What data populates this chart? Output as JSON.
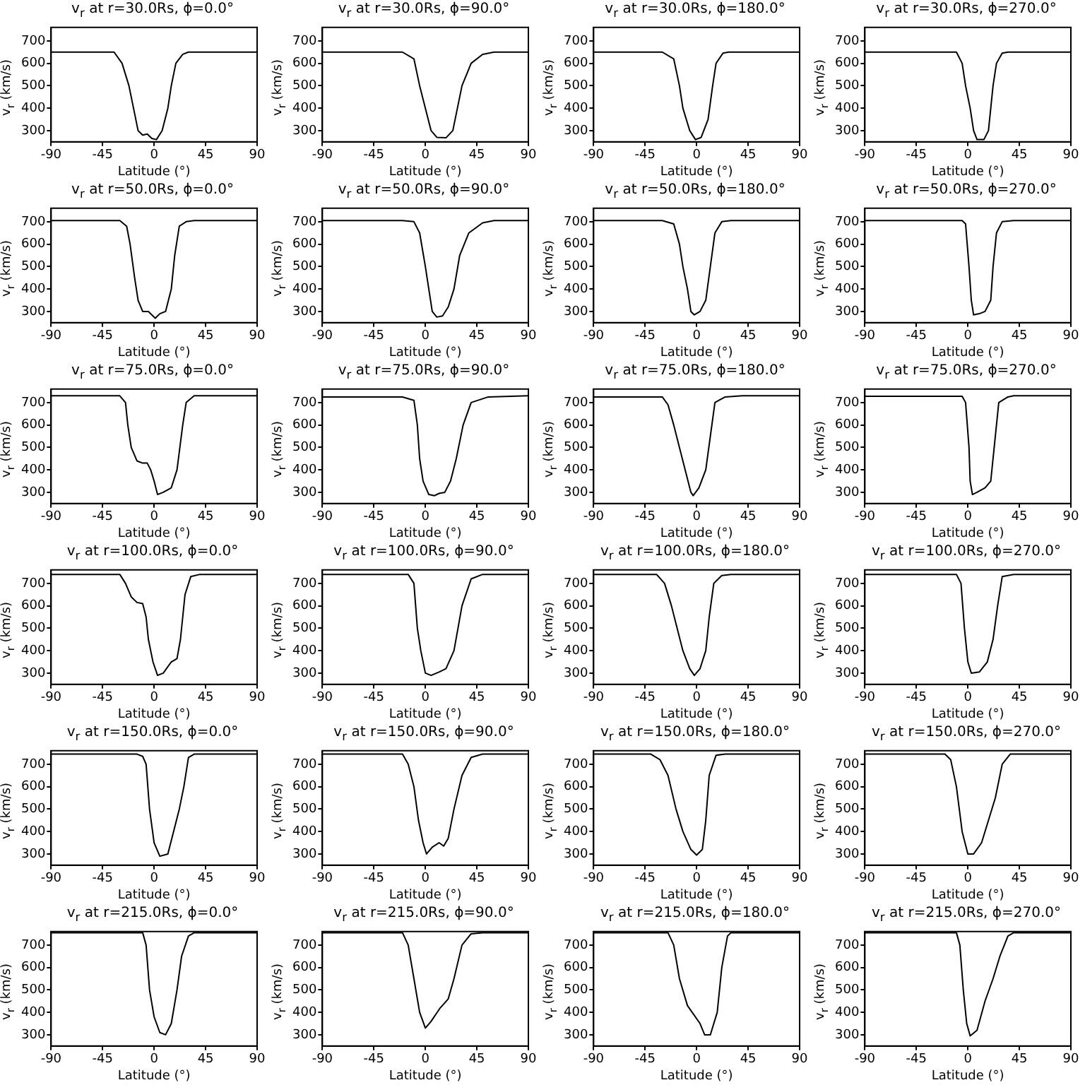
{
  "chart_data": [
    {
      "type": "line",
      "title": "v$_{r}$ at r=30.0Rs, ϕ=0.0°",
      "xlabel": "Latitude (°)",
      "ylabel": "v$_{r}$ (km/s)",
      "color": "#000000",
      "xlim": [
        -90,
        90
      ],
      "ylim": [
        250,
        760
      ],
      "xticks": [
        -90,
        -45,
        0,
        45,
        90
      ],
      "yticks": [
        300,
        400,
        500,
        600,
        700
      ],
      "x": [
        -90,
        -35,
        -28,
        -22,
        -18,
        -14,
        -10,
        -6,
        -2,
        2,
        7,
        12,
        15,
        19,
        25,
        30,
        90
      ],
      "values": [
        650,
        650,
        600,
        500,
        400,
        300,
        280,
        285,
        265,
        260,
        300,
        400,
        500,
        600,
        640,
        650,
        650
      ]
    },
    {
      "type": "line",
      "title": "v$_{r}$ at r=30.0Rs, ϕ=90.0°",
      "xlabel": "Latitude (°)",
      "ylabel": "v$_{r}$ (km/s)",
      "color": "#000000",
      "xlim": [
        -90,
        90
      ],
      "ylim": [
        250,
        760
      ],
      "xticks": [
        -90,
        -45,
        0,
        45,
        90
      ],
      "yticks": [
        300,
        400,
        500,
        600,
        700
      ],
      "x": [
        -90,
        -20,
        -10,
        -5,
        0,
        5,
        10,
        18,
        24,
        28,
        32,
        40,
        50,
        60,
        90
      ],
      "values": [
        650,
        650,
        620,
        500,
        400,
        300,
        270,
        268,
        300,
        400,
        500,
        600,
        640,
        650,
        650
      ]
    },
    {
      "type": "line",
      "title": "v$_{r}$ at r=30.0Rs, ϕ=180.0°",
      "xlabel": "Latitude (°)",
      "ylabel": "v$_{r}$ (km/s)",
      "color": "#000000",
      "xlim": [
        -90,
        90
      ],
      "ylim": [
        250,
        760
      ],
      "xticks": [
        -90,
        -45,
        0,
        45,
        90
      ],
      "yticks": [
        300,
        400,
        500,
        600,
        700
      ],
      "x": [
        -90,
        -30,
        -20,
        -15,
        -12,
        -6,
        -1,
        4,
        10,
        14,
        17,
        23,
        28,
        90
      ],
      "values": [
        650,
        650,
        620,
        500,
        400,
        300,
        260,
        270,
        350,
        500,
        600,
        645,
        650,
        650
      ]
    },
    {
      "type": "line",
      "title": "v$_{r}$ at r=30.0Rs, ϕ=270.0°",
      "xlabel": "Latitude (°)",
      "ylabel": "v$_{r}$ (km/s)",
      "color": "#000000",
      "xlim": [
        -90,
        90
      ],
      "ylim": [
        250,
        760
      ],
      "xticks": [
        -90,
        -45,
        0,
        45,
        90
      ],
      "yticks": [
        300,
        400,
        500,
        600,
        700
      ],
      "x": [
        -90,
        -10,
        -5,
        -2,
        2,
        5,
        8,
        14,
        18,
        20,
        22,
        25,
        30,
        35,
        90
      ],
      "values": [
        650,
        650,
        600,
        500,
        400,
        300,
        260,
        260,
        300,
        400,
        500,
        600,
        645,
        650,
        650
      ]
    },
    {
      "type": "line",
      "title": "v$_{r}$ at r=50.0Rs, ϕ=0.0°",
      "xlabel": "Latitude (°)",
      "ylabel": "v$_{r}$ (km/s)",
      "color": "#000000",
      "xlim": [
        -90,
        90
      ],
      "ylim": [
        250,
        760
      ],
      "xticks": [
        -90,
        -45,
        0,
        45,
        90
      ],
      "yticks": [
        300,
        400,
        500,
        600,
        700
      ],
      "x": [
        -90,
        -30,
        -24,
        -21,
        -17,
        -14,
        -10,
        -5,
        -2,
        1,
        5,
        10,
        15,
        18,
        22,
        28,
        35,
        90
      ],
      "values": [
        705,
        705,
        680,
        600,
        450,
        350,
        300,
        300,
        285,
        270,
        290,
        300,
        400,
        550,
        680,
        700,
        705,
        705
      ]
    },
    {
      "type": "line",
      "title": "v$_{r}$ at r=50.0Rs, ϕ=90.0°",
      "xlabel": "Latitude (°)",
      "ylabel": "v$_{r}$ (km/s)",
      "color": "#000000",
      "xlim": [
        -90,
        90
      ],
      "ylim": [
        250,
        760
      ],
      "xticks": [
        -90,
        -45,
        0,
        45,
        90
      ],
      "yticks": [
        300,
        400,
        500,
        600,
        700
      ],
      "x": [
        -90,
        -20,
        -10,
        -5,
        0,
        3,
        6,
        10,
        15,
        20,
        25,
        30,
        38,
        50,
        60,
        90
      ],
      "values": [
        705,
        705,
        700,
        650,
        500,
        400,
        300,
        275,
        280,
        320,
        400,
        550,
        650,
        695,
        705,
        705
      ]
    },
    {
      "type": "line",
      "title": "v$_{r}$ at r=50.0Rs, ϕ=180.0°",
      "xlabel": "Latitude (°)",
      "ylabel": "v$_{r}$ (km/s)",
      "color": "#000000",
      "xlim": [
        -90,
        90
      ],
      "ylim": [
        250,
        760
      ],
      "xticks": [
        -90,
        -45,
        0,
        45,
        90
      ],
      "yticks": [
        300,
        400,
        500,
        600,
        700
      ],
      "x": [
        -90,
        -30,
        -20,
        -15,
        -12,
        -8,
        -5,
        -2,
        3,
        8,
        12,
        16,
        22,
        30,
        90
      ],
      "values": [
        705,
        705,
        690,
        600,
        500,
        400,
        300,
        285,
        300,
        350,
        500,
        650,
        700,
        705,
        705
      ]
    },
    {
      "type": "line",
      "title": "v$_{r}$ at r=50.0Rs, ϕ=270.0°",
      "xlabel": "Latitude (°)",
      "ylabel": "v$_{r}$ (km/s)",
      "color": "#000000",
      "xlim": [
        -90,
        90
      ],
      "ylim": [
        250,
        760
      ],
      "xticks": [
        -90,
        -45,
        0,
        45,
        90
      ],
      "yticks": [
        300,
        400,
        500,
        600,
        700
      ],
      "x": [
        -90,
        -5,
        -2,
        1,
        3,
        5,
        10,
        15,
        20,
        22,
        25,
        30,
        40,
        90
      ],
      "values": [
        705,
        705,
        690,
        500,
        350,
        285,
        290,
        300,
        350,
        500,
        650,
        700,
        705,
        705
      ]
    },
    {
      "type": "line",
      "title": "v$_{r}$ at r=75.0Rs, ϕ=0.0°",
      "xlabel": "Latitude (°)",
      "ylabel": "v$_{r}$ (km/s)",
      "color": "#000000",
      "xlim": [
        -90,
        90
      ],
      "ylim": [
        250,
        760
      ],
      "xticks": [
        -90,
        -45,
        0,
        45,
        90
      ],
      "yticks": [
        300,
        400,
        500,
        600,
        700
      ],
      "x": [
        -90,
        -30,
        -25,
        -23,
        -20,
        -15,
        -10,
        -6,
        -3,
        0,
        3,
        8,
        15,
        20,
        25,
        28,
        35,
        90
      ],
      "values": [
        730,
        730,
        700,
        600,
        500,
        440,
        430,
        430,
        400,
        350,
        290,
        300,
        320,
        400,
        600,
        700,
        730,
        730
      ]
    },
    {
      "type": "line",
      "title": "v$_{r}$ at r=75.0Rs, ϕ=90.0°",
      "xlabel": "Latitude (°)",
      "ylabel": "v$_{r}$ (km/s)",
      "color": "#000000",
      "xlim": [
        -90,
        90
      ],
      "ylim": [
        250,
        760
      ],
      "xticks": [
        -90,
        -45,
        0,
        45,
        90
      ],
      "yticks": [
        300,
        400,
        500,
        600,
        700
      ],
      "x": [
        -90,
        -20,
        -10,
        -7,
        -5,
        -2,
        3,
        8,
        12,
        17,
        22,
        27,
        33,
        40,
        55,
        90
      ],
      "values": [
        725,
        725,
        710,
        600,
        450,
        350,
        290,
        285,
        295,
        300,
        350,
        450,
        600,
        700,
        725,
        730
      ]
    },
    {
      "type": "line",
      "title": "v$_{r}$ at r=75.0Rs, ϕ=180.0°",
      "xlabel": "Latitude (°)",
      "ylabel": "v$_{r}$ (km/s)",
      "color": "#000000",
      "xlim": [
        -90,
        90
      ],
      "ylim": [
        250,
        760
      ],
      "xticks": [
        -90,
        -45,
        0,
        45,
        90
      ],
      "yticks": [
        300,
        400,
        500,
        600,
        700
      ],
      "x": [
        -90,
        -30,
        -25,
        -20,
        -15,
        -10,
        -5,
        -3,
        2,
        8,
        12,
        16,
        25,
        40,
        90
      ],
      "values": [
        725,
        725,
        690,
        600,
        500,
        400,
        300,
        285,
        320,
        400,
        550,
        700,
        725,
        730,
        730
      ]
    },
    {
      "type": "line",
      "title": "v$_{r}$ at r=75.0Rs, ϕ=270.0°",
      "xlabel": "Latitude (°)",
      "ylabel": "v$_{r}$ (km/s)",
      "color": "#000000",
      "xlim": [
        -90,
        90
      ],
      "ylim": [
        250,
        760
      ],
      "xticks": [
        -90,
        -45,
        0,
        45,
        90
      ],
      "yticks": [
        300,
        400,
        500,
        600,
        700
      ],
      "x": [
        -90,
        -5,
        -2,
        1,
        2,
        4,
        8,
        15,
        20,
        23,
        27,
        35,
        40,
        90
      ],
      "values": [
        728,
        728,
        700,
        500,
        350,
        290,
        300,
        320,
        350,
        500,
        700,
        725,
        730,
        730
      ]
    },
    {
      "type": "line",
      "title": "v$_{r}$ at r=100.0Rs, ϕ=0.0°",
      "xlabel": "Latitude (°)",
      "ylabel": "v$_{r}$ (km/s)",
      "color": "#000000",
      "xlim": [
        -90,
        90
      ],
      "ylim": [
        250,
        760
      ],
      "xticks": [
        -90,
        -45,
        0,
        45,
        90
      ],
      "yticks": [
        300,
        400,
        500,
        600,
        700
      ],
      "x": [
        -90,
        -30,
        -25,
        -20,
        -15,
        -10,
        -7,
        -5,
        -1,
        3,
        8,
        15,
        20,
        23,
        27,
        32,
        40,
        90
      ],
      "values": [
        740,
        740,
        700,
        640,
        615,
        610,
        550,
        450,
        350,
        290,
        300,
        350,
        365,
        450,
        650,
        730,
        740,
        740
      ]
    },
    {
      "type": "line",
      "title": "v$_{r}$ at r=100.0Rs, ϕ=90.0°",
      "xlabel": "Latitude (°)",
      "ylabel": "v$_{r}$ (km/s)",
      "color": "#000000",
      "xlim": [
        -90,
        90
      ],
      "ylim": [
        250,
        760
      ],
      "xticks": [
        -90,
        -45,
        0,
        45,
        90
      ],
      "yticks": [
        300,
        400,
        500,
        600,
        700
      ],
      "x": [
        -90,
        -15,
        -10,
        -7,
        -4,
        0,
        5,
        12,
        18,
        25,
        32,
        40,
        50,
        90
      ],
      "values": [
        740,
        740,
        700,
        500,
        400,
        300,
        290,
        305,
        320,
        400,
        600,
        720,
        740,
        740
      ]
    },
    {
      "type": "line",
      "title": "v$_{r}$ at r=100.0Rs, ϕ=180.0°",
      "xlabel": "Latitude (°)",
      "ylabel": "v$_{r}$ (km/s)",
      "color": "#000000",
      "xlim": [
        -90,
        90
      ],
      "ylim": [
        250,
        760
      ],
      "xticks": [
        -90,
        -45,
        0,
        45,
        90
      ],
      "yticks": [
        300,
        400,
        500,
        600,
        700
      ],
      "x": [
        -90,
        -35,
        -28,
        -22,
        -17,
        -12,
        -6,
        -2,
        3,
        8,
        11,
        15,
        22,
        30,
        90
      ],
      "values": [
        740,
        740,
        700,
        600,
        500,
        400,
        320,
        290,
        320,
        400,
        550,
        700,
        735,
        740,
        740
      ]
    },
    {
      "type": "line",
      "title": "v$_{r}$ at r=100.0Rs, ϕ=270.0°",
      "xlabel": "Latitude (°)",
      "ylabel": "v$_{r}$ (km/s)",
      "color": "#000000",
      "xlim": [
        -90,
        90
      ],
      "ylim": [
        250,
        760
      ],
      "xticks": [
        -90,
        -45,
        0,
        45,
        90
      ],
      "yticks": [
        300,
        400,
        500,
        600,
        700
      ],
      "x": [
        -90,
        -10,
        -6,
        -3,
        0,
        3,
        10,
        17,
        22,
        26,
        30,
        40,
        90
      ],
      "values": [
        740,
        740,
        700,
        500,
        350,
        300,
        305,
        350,
        450,
        600,
        730,
        740,
        740
      ]
    },
    {
      "type": "line",
      "title": "v$_{r}$ at r=150.0Rs, ϕ=0.0°",
      "xlabel": "Latitude (°)",
      "ylabel": "v$_{r}$ (km/s)",
      "color": "#000000",
      "xlim": [
        -90,
        90
      ],
      "ylim": [
        250,
        760
      ],
      "xticks": [
        -90,
        -45,
        0,
        45,
        90
      ],
      "yticks": [
        300,
        400,
        500,
        600,
        700
      ],
      "x": [
        -90,
        -15,
        -10,
        -7,
        -4,
        0,
        5,
        12,
        17,
        22,
        26,
        30,
        35,
        90
      ],
      "values": [
        745,
        745,
        735,
        700,
        500,
        350,
        290,
        300,
        400,
        500,
        600,
        730,
        745,
        745
      ]
    },
    {
      "type": "line",
      "title": "v$_{r}$ at r=150.0Rs, ϕ=90.0°",
      "xlabel": "Latitude (°)",
      "ylabel": "v$_{r}$ (km/s)",
      "color": "#000000",
      "xlim": [
        -90,
        90
      ],
      "ylim": [
        250,
        760
      ],
      "xticks": [
        -90,
        -45,
        0,
        45,
        90
      ],
      "yticks": [
        300,
        400,
        500,
        600,
        700
      ],
      "x": [
        -90,
        -20,
        -15,
        -10,
        -6,
        -2,
        1,
        6,
        12,
        16,
        20,
        25,
        32,
        40,
        50,
        90
      ],
      "values": [
        745,
        745,
        700,
        600,
        450,
        350,
        300,
        330,
        350,
        335,
        370,
        500,
        650,
        730,
        745,
        745
      ]
    },
    {
      "type": "line",
      "title": "v$_{r}$ at r=150.0Rs, ϕ=180.0°",
      "xlabel": "Latitude (°)",
      "ylabel": "v$_{r}$ (km/s)",
      "color": "#000000",
      "xlim": [
        -90,
        90
      ],
      "ylim": [
        250,
        760
      ],
      "xticks": [
        -90,
        -45,
        0,
        45,
        90
      ],
      "yticks": [
        300,
        400,
        500,
        600,
        700
      ],
      "x": [
        -90,
        -40,
        -32,
        -25,
        -18,
        -12,
        -5,
        0,
        5,
        8,
        11,
        17,
        25,
        90
      ],
      "values": [
        745,
        745,
        720,
        650,
        500,
        400,
        320,
        295,
        320,
        450,
        650,
        740,
        745,
        745
      ]
    },
    {
      "type": "line",
      "title": "v$_{r}$ at r=150.0Rs, ϕ=270.0°",
      "xlabel": "Latitude (°)",
      "ylabel": "v$_{r}$ (km/s)",
      "color": "#000000",
      "xlim": [
        -90,
        90
      ],
      "ylim": [
        250,
        760
      ],
      "xticks": [
        -90,
        -45,
        0,
        45,
        90
      ],
      "yticks": [
        300,
        400,
        500,
        600,
        700
      ],
      "x": [
        -90,
        -20,
        -15,
        -10,
        -5,
        0,
        5,
        12,
        18,
        24,
        30,
        37,
        90
      ],
      "values": [
        745,
        745,
        720,
        600,
        400,
        300,
        300,
        350,
        450,
        550,
        700,
        745,
        745
      ]
    },
    {
      "type": "line",
      "title": "v$_{r}$ at r=215.0Rs, ϕ=0.0°",
      "xlabel": "Latitude (°)",
      "ylabel": "v$_{r}$ (km/s)",
      "color": "#000000",
      "xlim": [
        -90,
        90
      ],
      "ylim": [
        250,
        760
      ],
      "xticks": [
        -90,
        -45,
        0,
        45,
        90
      ],
      "yticks": [
        300,
        400,
        500,
        600,
        700
      ],
      "x": [
        -90,
        -10,
        -7,
        -4,
        0,
        5,
        10,
        15,
        20,
        24,
        30,
        35,
        90
      ],
      "values": [
        755,
        755,
        700,
        500,
        380,
        310,
        300,
        350,
        500,
        650,
        740,
        755,
        755
      ]
    },
    {
      "type": "line",
      "title": "v$_{r}$ at r=215.0Rs, ϕ=90.0°",
      "xlabel": "Latitude (°)",
      "ylabel": "v$_{r}$ (km/s)",
      "color": "#000000",
      "xlim": [
        -90,
        90
      ],
      "ylim": [
        250,
        760
      ],
      "xticks": [
        -90,
        -45,
        0,
        45,
        90
      ],
      "yticks": [
        300,
        400,
        500,
        600,
        700
      ],
      "x": [
        -90,
        -20,
        -15,
        -10,
        -5,
        0,
        5,
        13,
        20,
        25,
        32,
        40,
        50,
        90
      ],
      "values": [
        755,
        755,
        700,
        550,
        400,
        330,
        360,
        420,
        460,
        550,
        700,
        750,
        755,
        755
      ]
    },
    {
      "type": "line",
      "title": "v$_{r}$ at r=215.0Rs, ϕ=180.0°",
      "xlabel": "Latitude (°)",
      "ylabel": "v$_{r}$ (km/s)",
      "color": "#000000",
      "xlim": [
        -90,
        90
      ],
      "ylim": [
        250,
        760
      ],
      "xticks": [
        -90,
        -45,
        0,
        45,
        90
      ],
      "yticks": [
        300,
        400,
        500,
        600,
        700
      ],
      "x": [
        -90,
        -25,
        -20,
        -15,
        -8,
        3,
        7,
        12,
        18,
        22,
        27,
        30,
        90
      ],
      "values": [
        755,
        755,
        700,
        550,
        430,
        350,
        300,
        300,
        400,
        600,
        740,
        755,
        755
      ]
    },
    {
      "type": "line",
      "title": "v$_{r}$ at r=215.0Rs, ϕ=270.0°",
      "xlabel": "Latitude (°)",
      "ylabel": "v$_{r}$ (km/s)",
      "color": "#000000",
      "xlim": [
        -90,
        90
      ],
      "ylim": [
        250,
        760
      ],
      "xticks": [
        -90,
        -45,
        0,
        45,
        90
      ],
      "yticks": [
        300,
        400,
        500,
        600,
        700
      ],
      "x": [
        -90,
        -10,
        -7,
        -4,
        -1,
        2,
        8,
        15,
        22,
        28,
        35,
        40,
        90
      ],
      "values": [
        755,
        755,
        700,
        500,
        350,
        295,
        320,
        450,
        550,
        650,
        740,
        755,
        755
      ]
    }
  ]
}
